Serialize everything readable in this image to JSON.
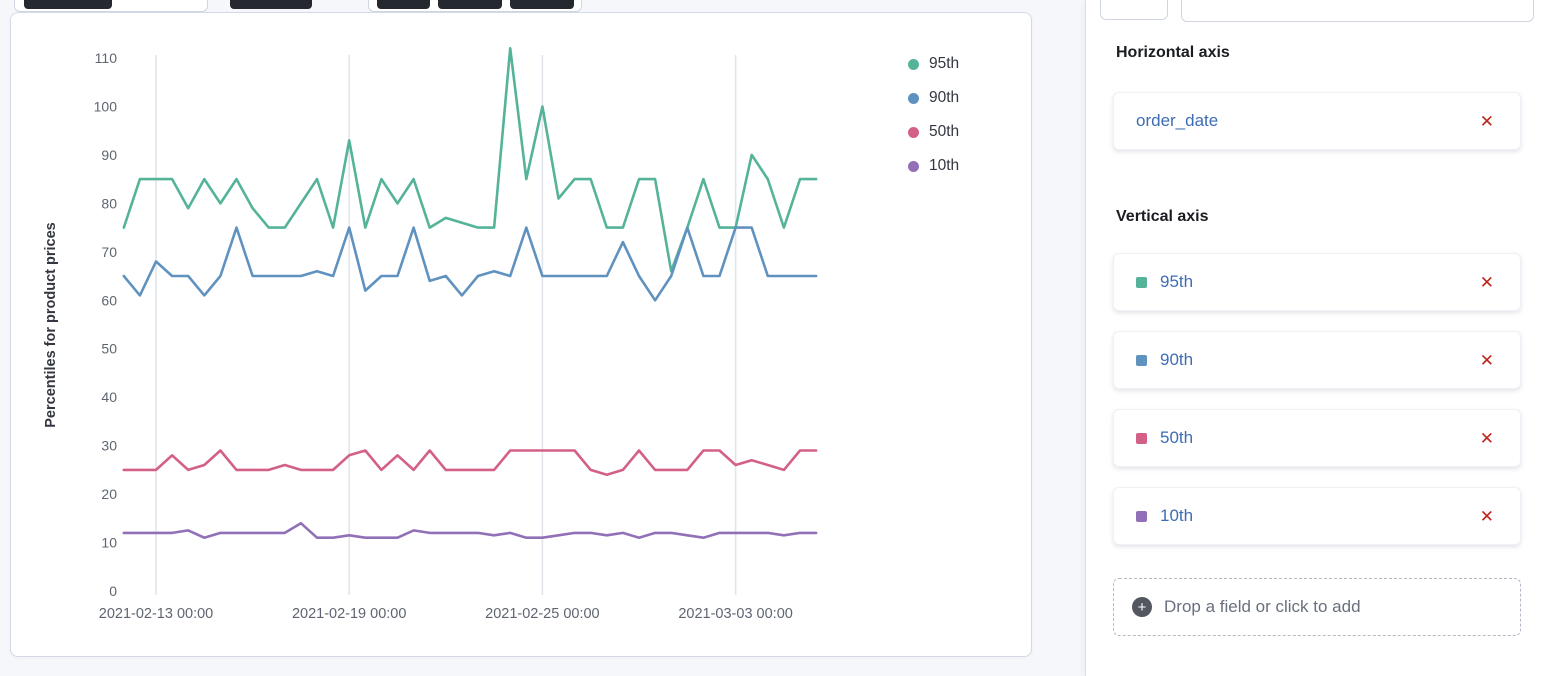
{
  "panel": {
    "horizontal_axis": {
      "heading": "Horizontal axis",
      "field": {
        "label": "order_date"
      },
      "remove_label": "✕"
    },
    "vertical_axis": {
      "heading": "Vertical axis",
      "fields": [
        {
          "label": "95th",
          "color": "#54B399"
        },
        {
          "label": "90th",
          "color": "#6092C0"
        },
        {
          "label": "50th",
          "color": "#D36086"
        },
        {
          "label": "10th",
          "color": "#9170B8"
        }
      ],
      "remove_label": "✕"
    },
    "drop_area": {
      "label": "Drop a field or click to add",
      "plus_glyph": "+"
    }
  },
  "chart_data": {
    "type": "line",
    "title": "",
    "xlabel": "",
    "ylabel": "Percentiles for product prices",
    "ylim": [
      0,
      110
    ],
    "y_ticks": [
      0,
      10,
      20,
      30,
      40,
      50,
      60,
      70,
      80,
      90,
      100,
      110
    ],
    "x_tick_labels": [
      "2021-02-13 00:00",
      "2021-02-19 00:00",
      "2021-02-25 00:00",
      "2021-03-03 00:00"
    ],
    "x_tick_indices": [
      2,
      14,
      26,
      38
    ],
    "x_start": "2021-02-12 00:00",
    "x_interval": "12h",
    "grid": "vertical-only",
    "legend_position": "top-right",
    "series": [
      {
        "name": "95th",
        "color": "#54B399",
        "values": [
          75,
          85,
          85,
          85,
          79,
          85,
          80,
          85,
          79,
          75,
          75,
          80,
          85,
          75,
          93,
          75,
          85,
          80,
          85,
          75,
          77,
          76,
          75,
          75,
          112,
          85,
          100,
          81,
          85,
          85,
          75,
          75,
          85,
          85,
          66,
          75,
          85,
          75,
          75,
          90,
          85,
          75,
          85,
          85
        ]
      },
      {
        "name": "90th",
        "color": "#6092C0",
        "values": [
          65,
          61,
          68,
          65,
          65,
          61,
          65,
          75,
          65,
          65,
          65,
          65,
          66,
          65,
          75,
          62,
          65,
          65,
          75,
          64,
          65,
          61,
          65,
          66,
          65,
          75,
          65,
          65,
          65,
          65,
          65,
          72,
          65,
          60,
          65,
          75,
          65,
          65,
          75,
          75,
          65,
          65,
          65,
          65
        ]
      },
      {
        "name": "50th",
        "color": "#D36086",
        "values": [
          25,
          25,
          25,
          28,
          25,
          26,
          29,
          25,
          25,
          25,
          26,
          25,
          25,
          25,
          28,
          29,
          25,
          28,
          25,
          29,
          25,
          25,
          25,
          25,
          29,
          29,
          29,
          29,
          29,
          25,
          24,
          25,
          29,
          25,
          25,
          25,
          29,
          29,
          26,
          27,
          26,
          25,
          29,
          29
        ]
      },
      {
        "name": "10th",
        "color": "#9170B8",
        "values": [
          12,
          12,
          12,
          12,
          12.5,
          11,
          12,
          12,
          12,
          12,
          12,
          14,
          11,
          11,
          11.5,
          11,
          11,
          11,
          12.5,
          12,
          12,
          12,
          12,
          11.5,
          12,
          11,
          11,
          11.5,
          12,
          12,
          11.5,
          12,
          11,
          12,
          12,
          11.5,
          11,
          12,
          12,
          12,
          12,
          11.5,
          12,
          12
        ]
      }
    ]
  }
}
